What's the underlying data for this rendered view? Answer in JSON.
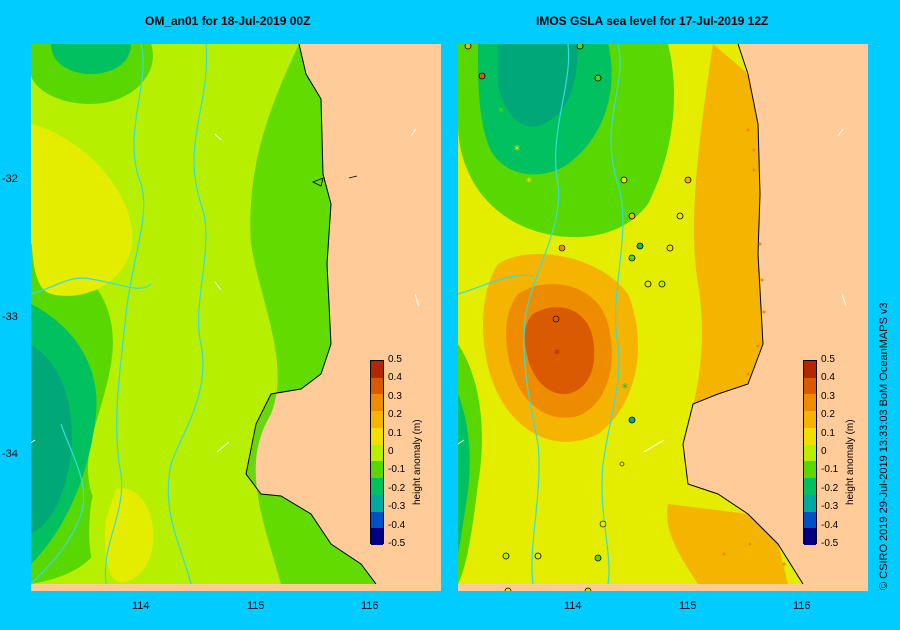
{
  "left_map": {
    "title": "OM_an01  for 18-Jul-2019 00Z",
    "lat_labels": [
      "-32",
      "-33",
      "-34"
    ],
    "lon_labels": [
      "114",
      "115",
      "116"
    ]
  },
  "right_map": {
    "title": "IMOS GSLA sea level  for 17-Jul-2019 12Z",
    "lon_labels": [
      "114",
      "115",
      "116"
    ]
  },
  "colorbar": {
    "title": "height anomaly (m)",
    "ticks": [
      "0.5",
      "0.4",
      "0.3",
      "0.2",
      "0.1",
      "0",
      "-0.1",
      "-0.2",
      "-0.3",
      "-0.4",
      "-0.5"
    ],
    "colors": [
      "#b22800",
      "#d95a00",
      "#ee8c00",
      "#f5b400",
      "#f0e000",
      "#b6f000",
      "#58d800",
      "#00c060",
      "#00a8a0",
      "#0050c8",
      "#000080"
    ]
  },
  "footer": "© CSIRO 2019   29-Jul-2019 13:33:03 BoM OceanMAPS v3",
  "colors": {
    "background": "#00ccff",
    "land": "#ffcc99",
    "bathymetry_contour": "#33dddd"
  }
}
